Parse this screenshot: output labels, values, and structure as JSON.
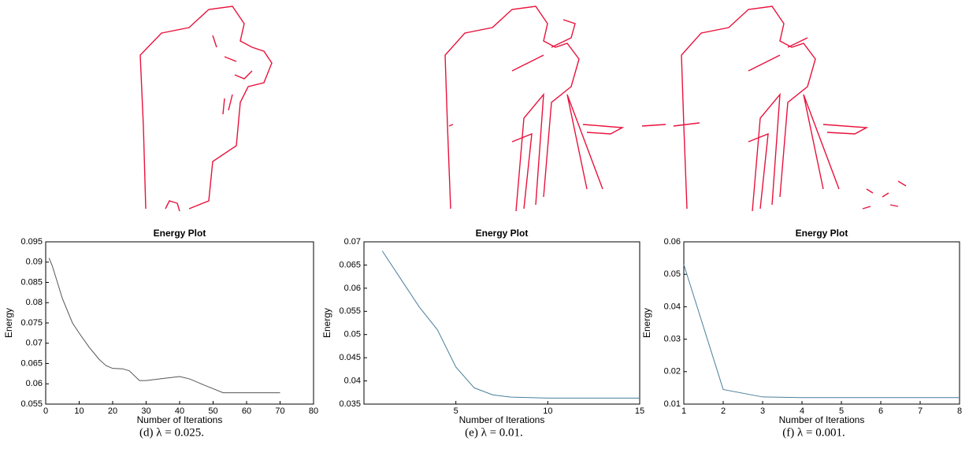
{
  "chart_data": [
    {
      "type": "line",
      "title": "Energy Plot",
      "xlabel": "Number of Iterations",
      "ylabel": "Energy",
      "caption": "(d) λ = 0.025.",
      "x": [
        1,
        2,
        5,
        8,
        10,
        13,
        16,
        18,
        20,
        23,
        25,
        28,
        30,
        35,
        40,
        43,
        47,
        50,
        53,
        60,
        70
      ],
      "series": [
        {
          "color": "#555555",
          "values": [
            0.091,
            0.089,
            0.081,
            0.075,
            0.0725,
            0.069,
            0.066,
            0.0645,
            0.0638,
            0.0637,
            0.0632,
            0.0608,
            0.0608,
            0.0613,
            0.0618,
            0.0612,
            0.0598,
            0.0588,
            0.0578,
            0.0578,
            0.0578
          ]
        }
      ],
      "xlim": [
        0,
        80
      ],
      "xticks": [
        0,
        10,
        20,
        30,
        40,
        50,
        60,
        70,
        80
      ],
      "ylim": [
        0.055,
        0.095
      ],
      "yticks": [
        0.055,
        0.06,
        0.065,
        0.07,
        0.075,
        0.08,
        0.085,
        0.09,
        0.095
      ]
    },
    {
      "type": "line",
      "title": "Energy Plot",
      "xlabel": "Number of Iterations",
      "ylabel": "Energy",
      "caption": "(e) λ = 0.01.",
      "x": [
        1,
        2,
        3,
        4,
        5,
        6,
        7,
        8,
        9,
        10,
        11,
        12,
        13,
        14,
        15
      ],
      "series": [
        {
          "color": "#4a7f9a",
          "values": [
            0.068,
            0.062,
            0.056,
            0.051,
            0.043,
            0.0385,
            0.037,
            0.0365,
            0.0364,
            0.0363,
            0.0363,
            0.0363,
            0.0363,
            0.0363,
            0.0363
          ]
        }
      ],
      "xlim": [
        0,
        15
      ],
      "xticks": [
        5,
        10,
        15
      ],
      "ylim": [
        0.035,
        0.07
      ],
      "yticks": [
        0.035,
        0.04,
        0.045,
        0.05,
        0.055,
        0.06,
        0.065,
        0.07
      ]
    },
    {
      "type": "line",
      "title": "Energy Plot",
      "xlabel": "Number of Iterations",
      "ylabel": "Energy",
      "caption": "(f) λ = 0.001.",
      "x": [
        1,
        2,
        3,
        4,
        5,
        6,
        7,
        8
      ],
      "series": [
        {
          "color": "#4a7f9a",
          "values": [
            0.053,
            0.0145,
            0.0122,
            0.012,
            0.012,
            0.012,
            0.012,
            0.012
          ]
        }
      ],
      "xlim": [
        1,
        8
      ],
      "xticks": [
        1,
        2,
        3,
        4,
        5,
        6,
        7,
        8
      ],
      "ylim": [
        0.01,
        0.06
      ],
      "yticks": [
        0.01,
        0.02,
        0.03,
        0.04,
        0.05,
        0.06
      ]
    }
  ]
}
